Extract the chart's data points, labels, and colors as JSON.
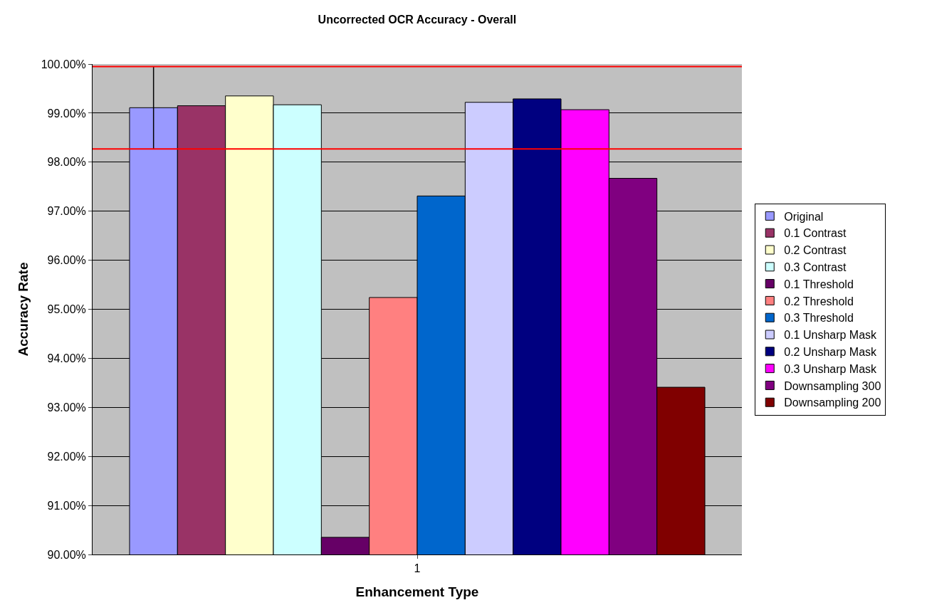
{
  "chart_data": {
    "type": "bar",
    "title": "Uncorrected OCR Accuracy - Overall",
    "xlabel": "Enhancement Type",
    "ylabel": "Accuracy Rate",
    "categories": [
      "1"
    ],
    "series": [
      {
        "name": "Original",
        "color": "#9999ff",
        "values": [
          99.11
        ],
        "errors": [
          [
            98.27,
            99.95
          ]
        ]
      },
      {
        "name": "0.1 Contrast",
        "color": "#993366",
        "values": [
          99.15
        ]
      },
      {
        "name": "0.2 Contrast",
        "color": "#ffffcc",
        "values": [
          99.35
        ]
      },
      {
        "name": "0.3 Contrast",
        "color": "#ccffff",
        "values": [
          99.17
        ]
      },
      {
        "name": "0.1 Threshold",
        "color": "#660066",
        "values": [
          90.35
        ]
      },
      {
        "name": "0.2 Threshold",
        "color": "#ff8080",
        "values": [
          95.24
        ]
      },
      {
        "name": "0.3 Threshold",
        "color": "#0066cc",
        "values": [
          97.31
        ]
      },
      {
        "name": "0.1 Unsharp Mask",
        "color": "#ccccff",
        "values": [
          99.22
        ]
      },
      {
        "name": "0.2 Unsharp Mask",
        "color": "#000080",
        "values": [
          99.29
        ]
      },
      {
        "name": "0.3 Unsharp Mask",
        "color": "#ff00ff",
        "values": [
          99.07
        ]
      },
      {
        "name": "Downsampling 300",
        "color": "#800080",
        "values": [
          97.67
        ]
      },
      {
        "name": "Downsampling 200",
        "color": "#800000",
        "values": [
          93.41
        ]
      }
    ],
    "ylim": [
      90,
      100
    ],
    "yticks": [
      {
        "value": 90,
        "label": "90.00%"
      },
      {
        "value": 91,
        "label": "91.00%"
      },
      {
        "value": 92,
        "label": "92.00%"
      },
      {
        "value": 93,
        "label": "93.00%"
      },
      {
        "value": 94,
        "label": "94.00%"
      },
      {
        "value": 95,
        "label": "95.00%"
      },
      {
        "value": 96,
        "label": "96.00%"
      },
      {
        "value": 97,
        "label": "97.00%"
      },
      {
        "value": 98,
        "label": "98.00%"
      },
      {
        "value": 99,
        "label": "99.00%"
      },
      {
        "value": 100,
        "label": "100.00%"
      }
    ],
    "ref_lines": [
      {
        "axis": "y",
        "value": 99.95,
        "color": "#ff0000"
      },
      {
        "axis": "y",
        "value": 98.27,
        "color": "#ff0000"
      }
    ],
    "grid": "y",
    "legend": "right"
  }
}
